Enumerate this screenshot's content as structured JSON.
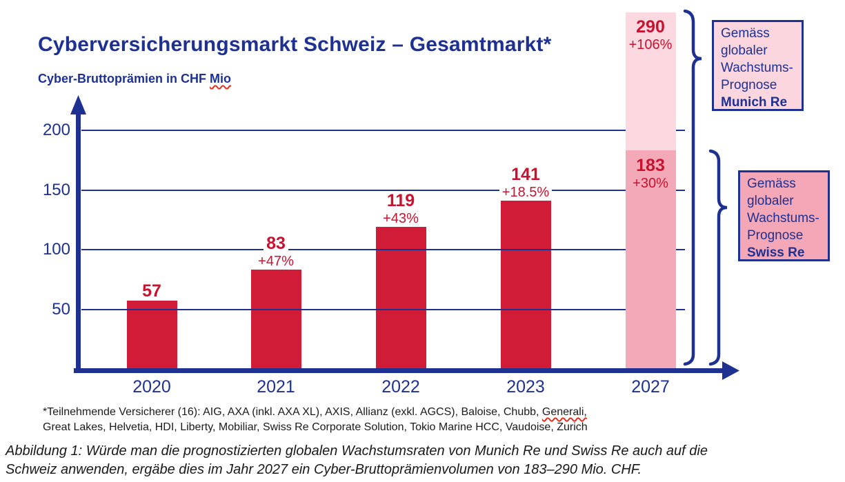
{
  "header": {
    "title": "Cyberversicherungsmarkt Schweiz – Gesamtmarkt*",
    "subtitle_main": "Cyber-Bruttoprämien in CHF ",
    "subtitle_flagged": "Mio"
  },
  "chart_data": {
    "type": "bar",
    "title": "Cyberversicherungsmarkt Schweiz – Gesamtmarkt*",
    "ylabel": "Cyber-Bruttoprämien in CHF Mio",
    "xlabel": "",
    "categories": [
      "2020",
      "2021",
      "2022",
      "2023",
      "2027"
    ],
    "values": [
      57,
      83,
      119,
      141,
      290
    ],
    "yticks": [
      50,
      100,
      150,
      200
    ],
    "ylim": [
      0,
      300
    ],
    "grid": true,
    "legend": "none",
    "bars": [
      {
        "year": "2020",
        "value": 57,
        "growth": ""
      },
      {
        "year": "2021",
        "value": 83,
        "growth": "+47%"
      },
      {
        "year": "2022",
        "value": 119,
        "growth": "+43%"
      },
      {
        "year": "2023",
        "value": 141,
        "growth": "+18.5%"
      },
      {
        "year": "2027",
        "value": 183,
        "growth": "+30%",
        "forecast_value": 290,
        "forecast_growth": "+106%",
        "segments": [
          {
            "to_value": 183,
            "growth": "+30%",
            "source": "Swiss Re"
          },
          {
            "to_value": 290,
            "growth": "+106%",
            "source": "Munich Re"
          }
        ]
      }
    ],
    "colors": {
      "axis_navy": "#1e3191",
      "bar_red": "#d01c37",
      "label_red": "#c9122f",
      "pink_light": "#fcd9e1",
      "pink_mid": "#f4a9b9",
      "munich_box_fill": "#fbd6de",
      "swiss_box_fill": "#f4a7b7",
      "spellcheck_red": "#e0301e"
    }
  },
  "forecast_boxes": [
    {
      "lines": [
        "Gemäss",
        "globaler",
        "Wachstums-",
        "Prognose"
      ],
      "insurer": "Munich Re"
    },
    {
      "lines": [
        "Gemäss",
        "globaler",
        "Wachstums-",
        "Prognose"
      ],
      "insurer": "Swiss Re"
    }
  ],
  "footnote": {
    "line1_main": "*Teilnehmende Versicherer (16): AIG, AXA (inkl. AXA XL), AXIS, Allianz (exkl. AGCS), Baloise, Chubb, ",
    "line1_flagged": "Generali,",
    "line2": "Great Lakes, Helvetia, HDI, Liberty, Mobiliar, Swiss Re Corporate Solution, Tokio Marine HCC, Vaudoise, Zurich"
  },
  "caption": {
    "line1": "Abbildung 1: Würde man die prognostizierten globalen Wachstumsraten von Munich Re und Swiss Re auch auf die",
    "line2": "Schweiz anwenden, ergäbe dies im Jahr 2027 ein Cyber-Bruttoprämienvolumen von 183–290 Mio. CHF."
  }
}
